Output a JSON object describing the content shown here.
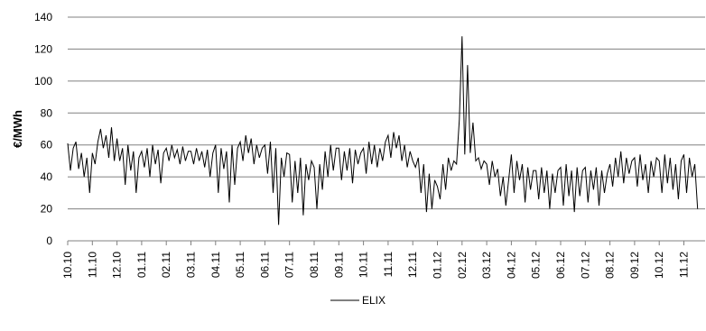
{
  "chart_data": {
    "type": "line",
    "ylabel": "€/MWh",
    "ylim": [
      0,
      140
    ],
    "yticks": [
      0,
      20,
      40,
      60,
      80,
      100,
      120,
      140
    ],
    "grid": "horizontal",
    "legend_position": "bottom-center",
    "x_tick_labels": [
      "10.10",
      "11.10",
      "12.10",
      "01.11",
      "02.11",
      "03.11",
      "04.11",
      "05.11",
      "06.11",
      "07.11",
      "08.11",
      "09.11",
      "10.11",
      "11.11",
      "12.11",
      "01.12",
      "02.12",
      "03.12",
      "04.12",
      "05.12",
      "06.12",
      "07.12",
      "08.12",
      "09.12",
      "10.12",
      "11.12"
    ],
    "series": [
      {
        "name": "ELIX",
        "color": "#000000",
        "monthly_points": [
          [
            "10.10",
            [
              61,
              44,
              58,
              62,
              45,
              55,
              40,
              52,
              30
            ]
          ],
          [
            "11.10",
            [
              55,
              48,
              62,
              70,
              58,
              66,
              52,
              71,
              50
            ]
          ],
          [
            "12.10",
            [
              64,
              50,
              58,
              35,
              60,
              44,
              56,
              30,
              52
            ]
          ],
          [
            "01.11",
            [
              56,
              46,
              58,
              40,
              60,
              48,
              57,
              36,
              55
            ]
          ],
          [
            "02.11",
            [
              58,
              50,
              60,
              52,
              57,
              48,
              59,
              50,
              56
            ]
          ],
          [
            "03.11",
            [
              56,
              48,
              58,
              50,
              56,
              46,
              57,
              40,
              55
            ]
          ],
          [
            "04.11",
            [
              60,
              30,
              58,
              45,
              56,
              24,
              60,
              35,
              58
            ]
          ],
          [
            "05.11",
            [
              62,
              50,
              66,
              55,
              64,
              48,
              60,
              52,
              58
            ]
          ],
          [
            "06.11",
            [
              60,
              42,
              62,
              30,
              58,
              10,
              52,
              40,
              55
            ]
          ],
          [
            "07.11",
            [
              54,
              24,
              50,
              30,
              52,
              16,
              48,
              38,
              50
            ]
          ],
          [
            "08.11",
            [
              46,
              20,
              48,
              32,
              56,
              40,
              60,
              44,
              58
            ]
          ],
          [
            "09.11",
            [
              58,
              38,
              56,
              44,
              58,
              36,
              57,
              48,
              55
            ]
          ],
          [
            "10.11",
            [
              58,
              42,
              62,
              48,
              60,
              46,
              58,
              50,
              62
            ]
          ],
          [
            "11.11",
            [
              66,
              52,
              68,
              58,
              66,
              50,
              60,
              46,
              56
            ]
          ],
          [
            "12.11",
            [
              50,
              46,
              52,
              30,
              48,
              18,
              42,
              20,
              38
            ]
          ],
          [
            "01.12",
            [
              34,
              26,
              48,
              32,
              52,
              44,
              50,
              48,
              76
            ]
          ],
          [
            "02.12",
            [
              128,
              54,
              110,
              55,
              74,
              50,
              52,
              45,
              50
            ]
          ],
          [
            "03.12",
            [
              48,
              35,
              50,
              40,
              45,
              28,
              40,
              22,
              38
            ]
          ],
          [
            "04.12",
            [
              54,
              30,
              50,
              38,
              48,
              24,
              46,
              32,
              44
            ]
          ],
          [
            "05.12",
            [
              44,
              26,
              46,
              30,
              44,
              20,
              42,
              30,
              44
            ]
          ],
          [
            "06.12",
            [
              46,
              22,
              48,
              28,
              44,
              18,
              46,
              28,
              44
            ]
          ],
          [
            "07.12",
            [
              46,
              24,
              44,
              32,
              46,
              22,
              44,
              30,
              42
            ]
          ],
          [
            "08.12",
            [
              48,
              34,
              52,
              40,
              56,
              36,
              52,
              42,
              50
            ]
          ],
          [
            "09.12",
            [
              52,
              34,
              54,
              38,
              48,
              30,
              50,
              40,
              52
            ]
          ],
          [
            "10.12",
            [
              50,
              30,
              54,
              36,
              52,
              32,
              48,
              26,
              50
            ]
          ],
          [
            "11.12",
            [
              54,
              30,
              52,
              40,
              48,
              20
            ]
          ]
        ]
      }
    ]
  }
}
